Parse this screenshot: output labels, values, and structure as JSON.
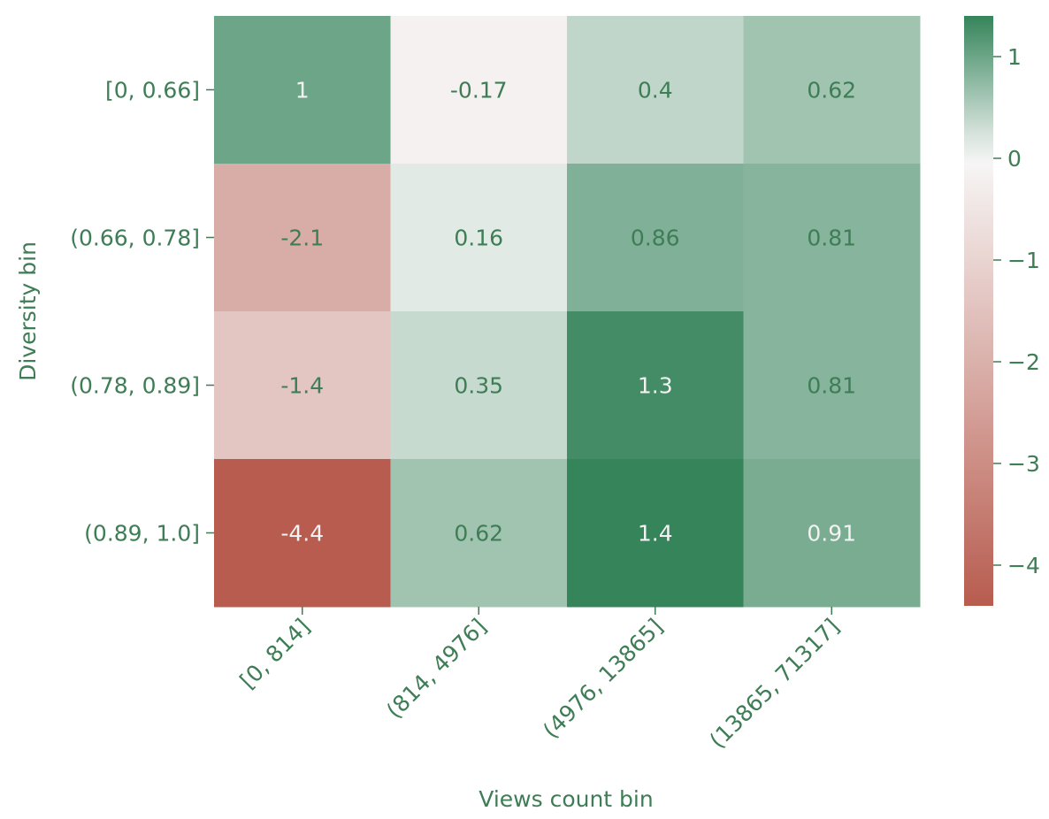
{
  "chart_data": {
    "type": "heatmap",
    "title": "",
    "xlabel": "Views count bin",
    "ylabel": "Diversity bin",
    "x_categories": [
      "[0, 814]",
      "(814, 4976]",
      "(4976, 13865]",
      "(13865, 71317]"
    ],
    "y_categories": [
      "[0, 0.66]",
      "(0.66, 0.78]",
      "(0.78, 0.89]",
      "(0.89, 1.0]"
    ],
    "values": [
      [
        1.0,
        -0.17,
        0.4,
        0.62
      ],
      [
        -2.1,
        0.16,
        0.86,
        0.81
      ],
      [
        -1.4,
        0.35,
        1.3,
        0.81
      ],
      [
        -4.4,
        0.62,
        1.4,
        0.91
      ]
    ],
    "annotations": [
      [
        "1",
        "-0.17",
        "0.4",
        "0.62"
      ],
      [
        "-2.1",
        "0.16",
        "0.86",
        "0.81"
      ],
      [
        "-1.4",
        "0.35",
        "1.3",
        "0.81"
      ],
      [
        "-4.4",
        "0.62",
        "1.4",
        "0.91"
      ]
    ],
    "colorscale": {
      "type": "diverging",
      "low_color": "#b85c4f",
      "mid_color": "#f7f7f7",
      "high_color": "#35845a",
      "vmin": -4.4,
      "vcenter": 0,
      "vmax": 1.4
    },
    "colorbar_ticks": [
      {
        "value": 1,
        "label": "1"
      },
      {
        "value": 0,
        "label": "0"
      },
      {
        "value": -1,
        "label": "−1"
      },
      {
        "value": -2,
        "label": "−2"
      },
      {
        "value": -3,
        "label": "−3"
      },
      {
        "value": -4,
        "label": "−4"
      }
    ],
    "text_color": "#3e7d55",
    "light_text_color": "#f2f2f2"
  }
}
